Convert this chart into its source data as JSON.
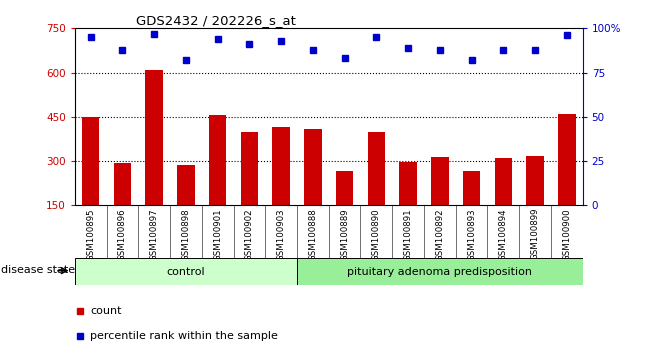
{
  "title": "GDS2432 / 202226_s_at",
  "samples": [
    "GSM100895",
    "GSM100896",
    "GSM100897",
    "GSM100898",
    "GSM100901",
    "GSM100902",
    "GSM100903",
    "GSM100888",
    "GSM100889",
    "GSM100890",
    "GSM100891",
    "GSM100892",
    "GSM100893",
    "GSM100894",
    "GSM100899",
    "GSM100900"
  ],
  "bar_values": [
    450,
    295,
    610,
    285,
    455,
    400,
    415,
    410,
    268,
    400,
    298,
    315,
    268,
    310,
    318,
    460
  ],
  "percentile_values": [
    95,
    88,
    97,
    82,
    94,
    91,
    93,
    88,
    83,
    95,
    89,
    88,
    82,
    88,
    88,
    96
  ],
  "bar_color": "#CC0000",
  "percentile_color": "#0000CC",
  "n_control": 7,
  "n_disease": 9,
  "control_label": "control",
  "disease_label": "pituitary adenoma predisposition",
  "disease_state_label": "disease state",
  "ylim_left": [
    150,
    750
  ],
  "ylim_right": [
    0,
    100
  ],
  "yticks_left": [
    150,
    300,
    450,
    600,
    750
  ],
  "yticks_right": [
    0,
    25,
    50,
    75,
    100
  ],
  "yticklabels_right": [
    "0",
    "25",
    "50",
    "75",
    "100%"
  ],
  "grid_lines": [
    300,
    450,
    600
  ],
  "legend_count_label": "count",
  "legend_percentile_label": "percentile rank within the sample",
  "label_bg_color": "#CCCCCC",
  "control_bg": "#CCFFCC",
  "disease_bg": "#99EE99"
}
